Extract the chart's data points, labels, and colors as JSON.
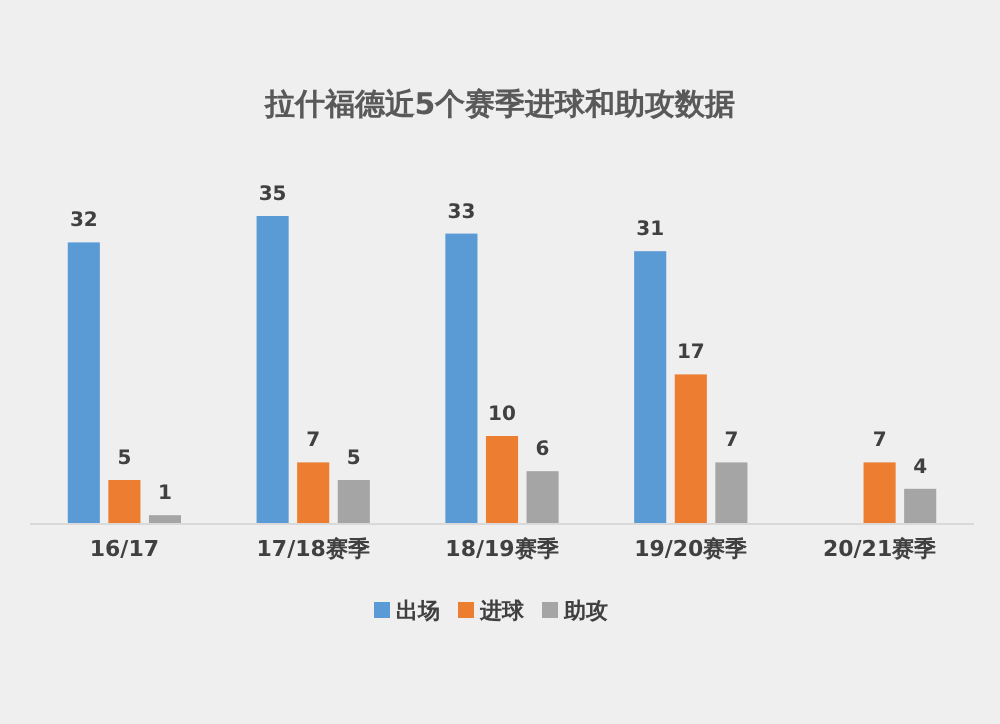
{
  "chart_data": {
    "type": "bar",
    "title": "拉什福德近5个赛季进球和助攻数据",
    "categories": [
      "16/17",
      "17/18赛季",
      "18/19赛季",
      "19/20赛季",
      "20/21赛季"
    ],
    "series": [
      {
        "name": "出场",
        "color": "#5b9bd5",
        "values": [
          32,
          35,
          33,
          31,
          null
        ]
      },
      {
        "name": "进球",
        "color": "#ed7d31",
        "values": [
          5,
          7,
          10,
          17,
          7
        ]
      },
      {
        "name": "助攻",
        "color": "#a5a5a5",
        "values": [
          1,
          5,
          6,
          7,
          4
        ]
      }
    ],
    "data_labels": true,
    "legend": "bottom"
  }
}
